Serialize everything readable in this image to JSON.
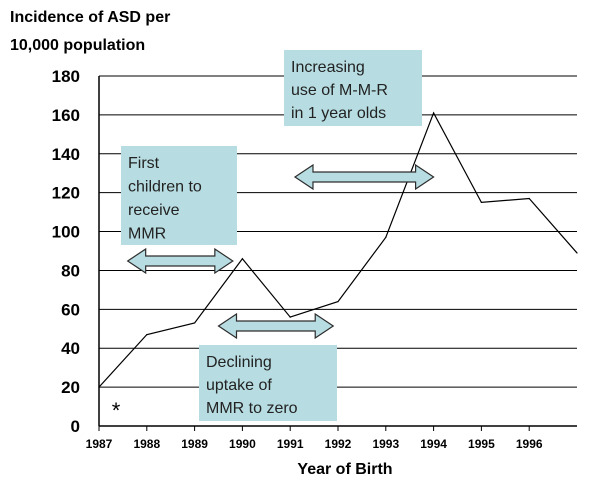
{
  "chart_data": {
    "type": "line",
    "ylabel_lines": [
      "Incidence of ASD per",
      "10,000 population"
    ],
    "xlabel": "Year of Birth",
    "ylim": [
      0,
      180
    ],
    "yticks": [
      0,
      20,
      40,
      60,
      80,
      100,
      120,
      140,
      160,
      180
    ],
    "xlim": [
      1987,
      1997
    ],
    "xticks": [
      "1987",
      "1988",
      "1989",
      "1990",
      "1991",
      "1992",
      "1993",
      "1994",
      "1995",
      "1996"
    ],
    "grid": true,
    "series": [
      {
        "name": "ASD incidence",
        "x": [
          1987,
          1988,
          1989,
          1990,
          1991,
          1992,
          1993,
          1994,
          1995,
          1996,
          1997
        ],
        "y": [
          20,
          47,
          53,
          86,
          56,
          64,
          97,
          161,
          115,
          117,
          89
        ]
      }
    ],
    "marker_note": "*",
    "annotations": [
      {
        "id": "first-children",
        "lines": [
          "First",
          "children to",
          "receive",
          "MMR"
        ],
        "arrow_from": 1987.6,
        "arrow_to": 1989.8
      },
      {
        "id": "declining-uptake",
        "lines": [
          "Declining",
          "uptake of",
          "MMR to zero"
        ],
        "arrow_from": 1989.5,
        "arrow_to": 1991.9
      },
      {
        "id": "increasing-use",
        "lines": [
          "Increasing",
          "use of M-M-R",
          "in 1 year olds"
        ],
        "arrow_from": 1991.1,
        "arrow_to": 1994.0
      }
    ]
  }
}
